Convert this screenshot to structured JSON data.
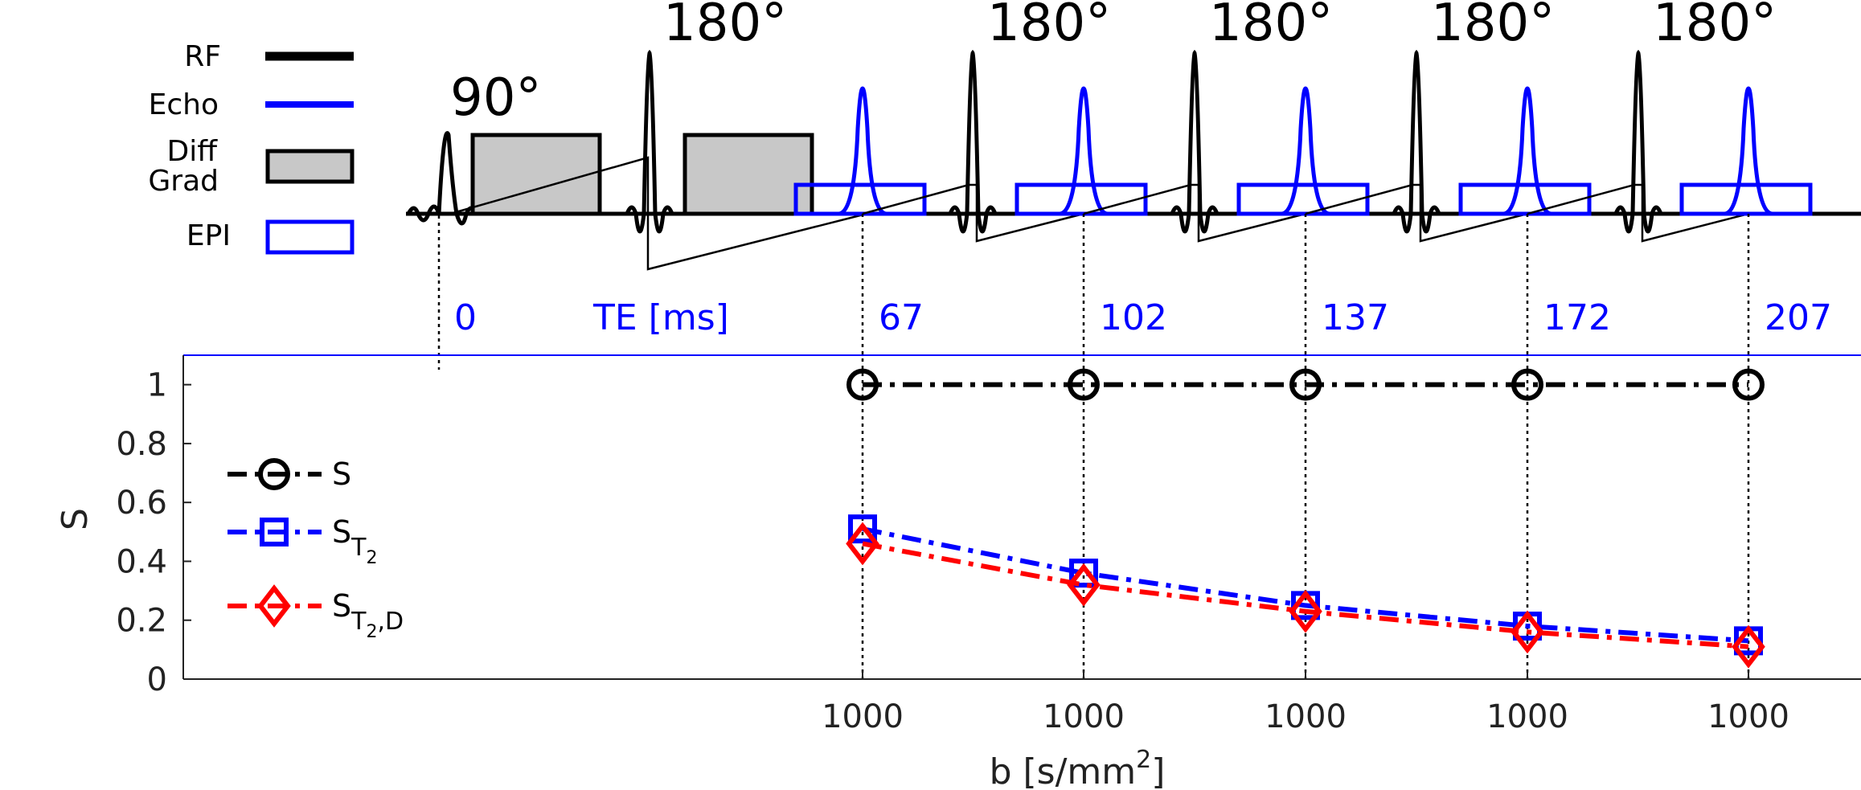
{
  "sequence": {
    "excitation_angle": "90°",
    "refocus_angle": "180°",
    "legend": [
      {
        "label": "RF",
        "color": "#000000",
        "kind": "line"
      },
      {
        "label": "Echo",
        "color": "#0000ff",
        "kind": "line"
      },
      {
        "label_line1": "Diff",
        "label_line2": "Grad",
        "color": "#000000",
        "fill": "#c8c8c8",
        "kind": "box"
      },
      {
        "label": "EPI",
        "color": "#0000ff",
        "kind": "box"
      }
    ],
    "te_axis_label": "TE [ms]",
    "te_zero": "0",
    "te_values": [
      "67",
      "102",
      "137",
      "172",
      "207"
    ]
  },
  "chart_data": {
    "type": "line",
    "title": "",
    "xlabel": "b [s/mm",
    "xlabel_sup": "2",
    "xlabel_end": "]",
    "ylabel": "S",
    "ylim": [
      0,
      1.1
    ],
    "yticks": [
      0,
      0.2,
      0.4,
      0.6,
      0.8,
      1
    ],
    "ytick_labels": [
      "0",
      "0.2",
      "0.4",
      "0.6",
      "0.8",
      "1"
    ],
    "categories": [
      "1000",
      "1000",
      "1000",
      "1000",
      "1000"
    ],
    "te_ms": [
      67,
      102,
      137,
      172,
      207
    ],
    "series": [
      {
        "name": "S",
        "name_sub": "",
        "color": "#000000",
        "marker": "circle",
        "values": [
          1,
          1,
          1,
          1,
          1
        ]
      },
      {
        "name": "S",
        "name_sub": "T",
        "name_sub2": "2",
        "color": "#0000ff",
        "marker": "square",
        "values": [
          0.51,
          0.36,
          0.25,
          0.18,
          0.13
        ]
      },
      {
        "name": "S",
        "name_sub": "T",
        "name_sub2": "2",
        "name_sub3": ",D",
        "color": "#ff0000",
        "marker": "diamond",
        "values": [
          0.46,
          0.32,
          0.23,
          0.16,
          0.11
        ]
      }
    ],
    "legend_position": "left"
  }
}
